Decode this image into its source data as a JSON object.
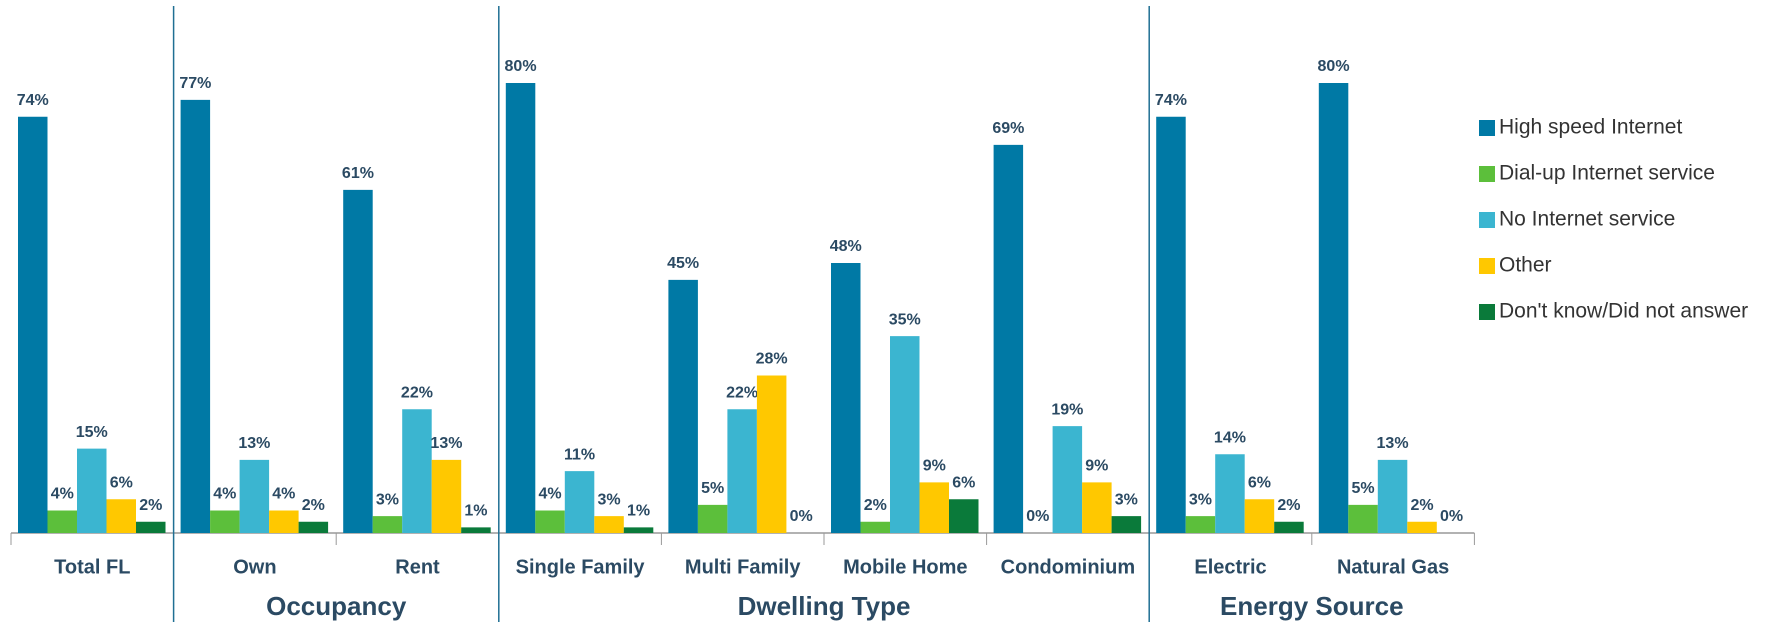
{
  "chart_data": {
    "type": "bar",
    "categories": [
      "Total FL",
      "Own",
      "Rent",
      "Single Family",
      "Multi Family",
      "Mobile Home",
      "Condominium",
      "Electric",
      "Natural Gas"
    ],
    "groups": [
      "Occupancy",
      "Dwelling Type",
      "Energy Source"
    ],
    "series": [
      {
        "name": "High speed Internet",
        "color": "#0079a5",
        "values": [
          74,
          77,
          61,
          80,
          45,
          48,
          69,
          74,
          80
        ],
        "value_labels": [
          "74%",
          "77%",
          "61%",
          "80%",
          "45%",
          "48%",
          "69%",
          "74%",
          "80%"
        ]
      },
      {
        "name": "Dial-up Internet service",
        "color": "#5cbf3b",
        "values": [
          4,
          4,
          3,
          4,
          5,
          2,
          0,
          3,
          5
        ],
        "value_labels": [
          "4%",
          "4%",
          "3%",
          "4%",
          "5%",
          "2%",
          "0%",
          "3%",
          "5%"
        ]
      },
      {
        "name": "No Internet service",
        "color": "#3bb5d0",
        "values": [
          15,
          13,
          22,
          11,
          22,
          35,
          19,
          14,
          13
        ],
        "value_labels": [
          "15%",
          "13%",
          "22%",
          "11%",
          "22%",
          "35%",
          "19%",
          "14%",
          "13%"
        ]
      },
      {
        "name": "Other",
        "color": "#ffc800",
        "values": [
          6,
          4,
          13,
          3,
          28,
          9,
          9,
          6,
          2
        ],
        "value_labels": [
          "6%",
          "4%",
          "13%",
          "3%",
          "28%",
          "9%",
          "9%",
          "6%",
          "2%"
        ]
      },
      {
        "name": "Don't know/Did not answer",
        "color": "#0a7a3a",
        "values": [
          2,
          2,
          1,
          1,
          0,
          6,
          3,
          2,
          0
        ],
        "value_labels": [
          "2%",
          "2%",
          "1%",
          "1%",
          "0%",
          "6%",
          "3%",
          "2%",
          "0%"
        ]
      }
    ],
    "legend": "right"
  }
}
